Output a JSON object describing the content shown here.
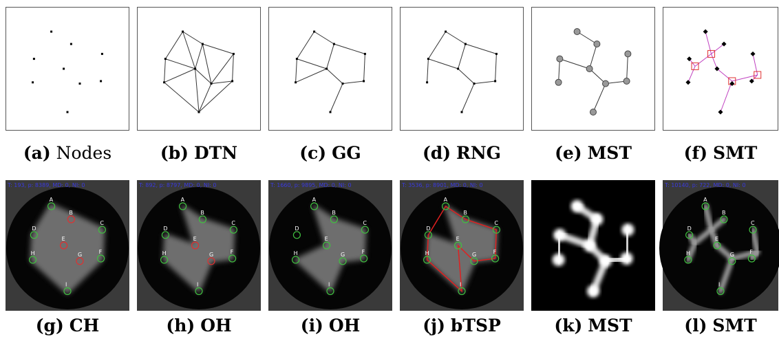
{
  "panels": [
    {
      "label": "(a)",
      "name": "Nodes"
    },
    {
      "label": "(b)",
      "name": "DTN"
    },
    {
      "label": "(c)",
      "name": "GG"
    },
    {
      "label": "(d)",
      "name": "RNG"
    },
    {
      "label": "(e)",
      "name": "MST"
    },
    {
      "label": "(f)",
      "name": "SMT"
    },
    {
      "label": "(g)",
      "name": "CH",
      "status": "T: 193, p: 8389, MD: 0, NI: 0"
    },
    {
      "label": "(h)",
      "name": "OH",
      "status": "T: 892, p: 8797, MD: 0, NI: 0"
    },
    {
      "label": "(i)",
      "name": "OH",
      "status": "T: 1660, p: 9895, MD: 0, NI: 0"
    },
    {
      "label": "(j)",
      "name": "bTSP",
      "status": "T: 3536, p: 8901, MD: 0, NI: 0"
    },
    {
      "label": "(k)",
      "name": "MST"
    },
    {
      "label": "(l)",
      "name": "SMT",
      "status": "T: 10140, p: 722, MD: 0, NI: 0"
    }
  ],
  "node_labels": [
    "A",
    "B",
    "C",
    "D",
    "E",
    "F",
    "G",
    "H",
    "I"
  ]
}
